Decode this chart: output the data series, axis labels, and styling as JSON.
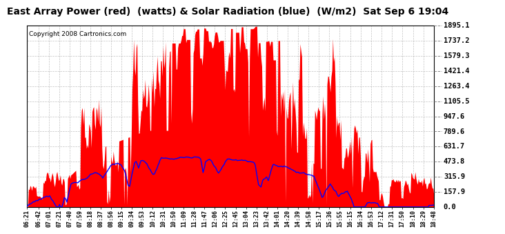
{
  "title": "East Array Power (red)  (watts) & Solar Radiation (blue)  (W/m2)  Sat Sep 6 19:04",
  "copyright": "Copyright 2008 Cartronics.com",
  "bg_color": "#ffffff",
  "plot_bg_color": "#ffffff",
  "grid_color": "#999999",
  "y_labels": [
    0.0,
    157.9,
    315.9,
    473.8,
    631.7,
    789.6,
    947.6,
    1105.5,
    1263.4,
    1421.4,
    1579.3,
    1737.2,
    1895.1
  ],
  "y_min": 0.0,
  "y_max": 1895.1,
  "x_labels": [
    "06:21",
    "06:42",
    "07:01",
    "07:21",
    "07:40",
    "07:59",
    "08:18",
    "08:37",
    "08:56",
    "09:15",
    "09:34",
    "09:53",
    "10:12",
    "10:31",
    "10:50",
    "11:09",
    "11:28",
    "11:47",
    "12:06",
    "12:25",
    "12:45",
    "13:04",
    "13:23",
    "13:42",
    "14:01",
    "14:20",
    "14:39",
    "14:58",
    "15:17",
    "15:36",
    "15:55",
    "16:15",
    "16:34",
    "16:53",
    "17:12",
    "17:31",
    "17:50",
    "18:10",
    "18:29",
    "18:48"
  ],
  "red_color": "#ff0000",
  "blue_color": "#0000ff",
  "title_fontsize": 10,
  "copyright_fontsize": 6.5,
  "tick_fontsize": 6,
  "y_tick_fontsize": 7.5
}
